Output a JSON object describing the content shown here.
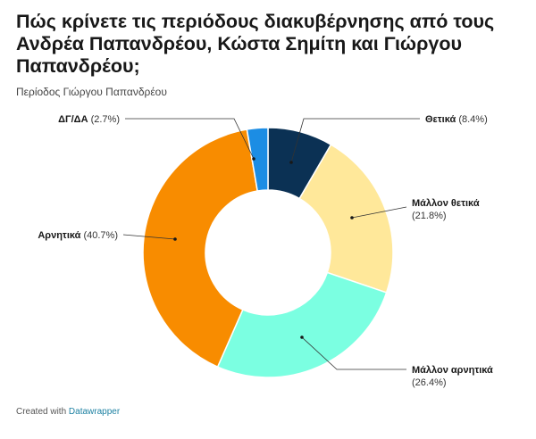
{
  "header": {
    "title": "Πώς κρίνετε τις περιόδους διακυβέρνησης από τους Ανδρέα Παπανδρέου, Κώστα Σημίτη και Γιώργου Παπανδρέου;",
    "subtitle": "Περίοδος Γιώργου Παπανδρέου"
  },
  "footer": {
    "prefix": "Created with",
    "link": "Datawrapper"
  },
  "chart_data": {
    "type": "pie",
    "donut": true,
    "categories": [
      "Θετικά",
      "Μάλλον θετικά",
      "Μάλλον αρνητικά",
      "Αρνητικά",
      "ΔΓ/ΔΑ"
    ],
    "values": [
      8.4,
      21.8,
      26.4,
      40.7,
      2.7
    ],
    "value_labels": [
      "(8.4%)",
      "(21.8%)",
      "(26.4%)",
      "(40.7%)",
      "(2.7%)"
    ],
    "colors": [
      "#0b3154",
      "#ffe89a",
      "#7bffe1",
      "#f88c00",
      "#1c8de4"
    ],
    "title": "Πώς κρίνετε τις περιόδους διακυβέρνησης από τους Ανδρέα Παπανδρέου, Κώστα Σημίτη και Γιώργου Παπανδρέου;",
    "subtitle": "Περίοδος Γιώργου Παπανδρέου"
  }
}
